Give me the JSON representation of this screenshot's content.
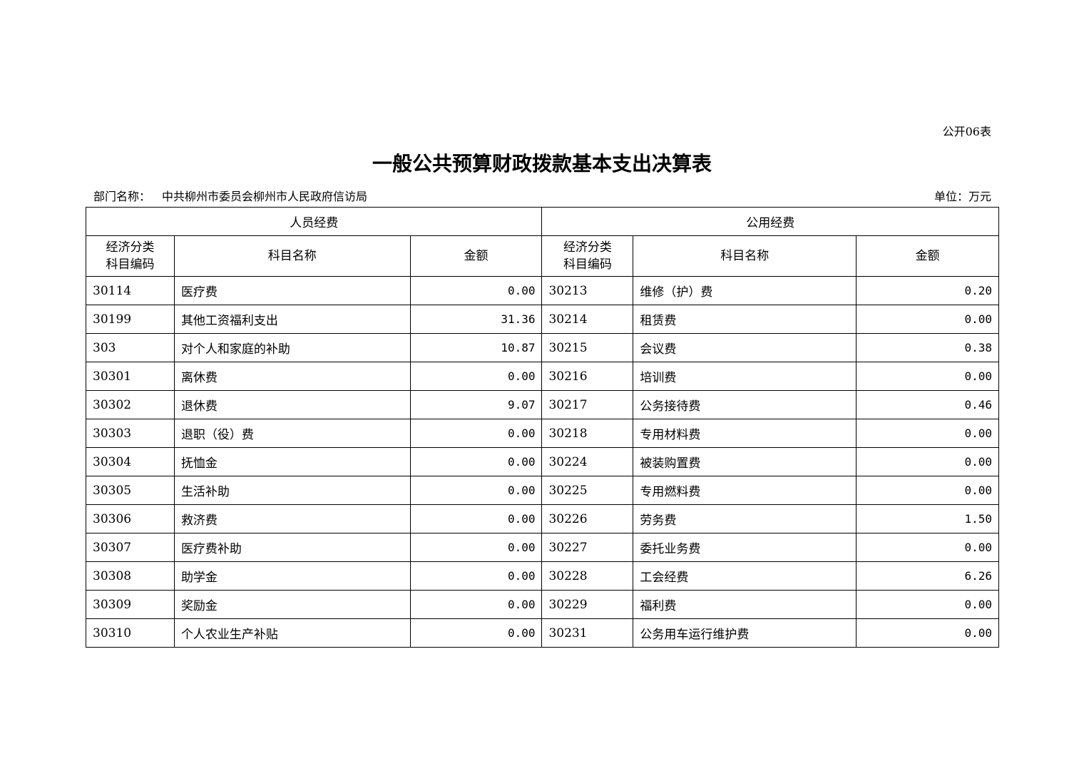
{
  "form_no": "公开06表",
  "title": "一般公共预算财政拨款基本支出决算表",
  "dept_label": "部门名称：",
  "dept_name": "中共柳州市委员会柳州市人民政府信访局",
  "unit": "单位：万元",
  "groups": [
    "人员经费",
    "公用经费"
  ],
  "headers": {
    "code_line1": "经济分类",
    "code_line2": "科目编码",
    "name": "科目名称",
    "amount": "金额"
  },
  "rows": [
    {
      "lc": "30114",
      "ln": "医疗费",
      "la": "0.00",
      "rc": "30213",
      "rn": "维修（护）费",
      "ra": "0.20"
    },
    {
      "lc": "30199",
      "ln": "其他工资福利支出",
      "la": "31.36",
      "rc": "30214",
      "rn": "租赁费",
      "ra": "0.00"
    },
    {
      "lc": "303",
      "ln": "对个人和家庭的补助",
      "la": "10.87",
      "rc": "30215",
      "rn": "会议费",
      "ra": "0.38"
    },
    {
      "lc": "30301",
      "ln": "离休费",
      "la": "0.00",
      "rc": "30216",
      "rn": "培训费",
      "ra": "0.00"
    },
    {
      "lc": "30302",
      "ln": "退休费",
      "la": "9.07",
      "rc": "30217",
      "rn": "公务接待费",
      "ra": "0.46"
    },
    {
      "lc": "30303",
      "ln": "退职（役）费",
      "la": "0.00",
      "rc": "30218",
      "rn": "专用材料费",
      "ra": "0.00"
    },
    {
      "lc": "30304",
      "ln": "抚恤金",
      "la": "0.00",
      "rc": "30224",
      "rn": "被装购置费",
      "ra": "0.00"
    },
    {
      "lc": "30305",
      "ln": "生活补助",
      "la": "0.00",
      "rc": "30225",
      "rn": "专用燃料费",
      "ra": "0.00"
    },
    {
      "lc": "30306",
      "ln": "救济费",
      "la": "0.00",
      "rc": "30226",
      "rn": "劳务费",
      "ra": "1.50"
    },
    {
      "lc": "30307",
      "ln": "医疗费补助",
      "la": "0.00",
      "rc": "30227",
      "rn": "委托业务费",
      "ra": "0.00"
    },
    {
      "lc": "30308",
      "ln": "助学金",
      "la": "0.00",
      "rc": "30228",
      "rn": "工会经费",
      "ra": "6.26"
    },
    {
      "lc": "30309",
      "ln": "奖励金",
      "la": "0.00",
      "rc": "30229",
      "rn": "福利费",
      "ra": "0.00"
    },
    {
      "lc": "30310",
      "ln": "个人农业生产补贴",
      "la": "0.00",
      "rc": "30231",
      "rn": "公务用车运行维护费",
      "ra": "0.00"
    }
  ]
}
